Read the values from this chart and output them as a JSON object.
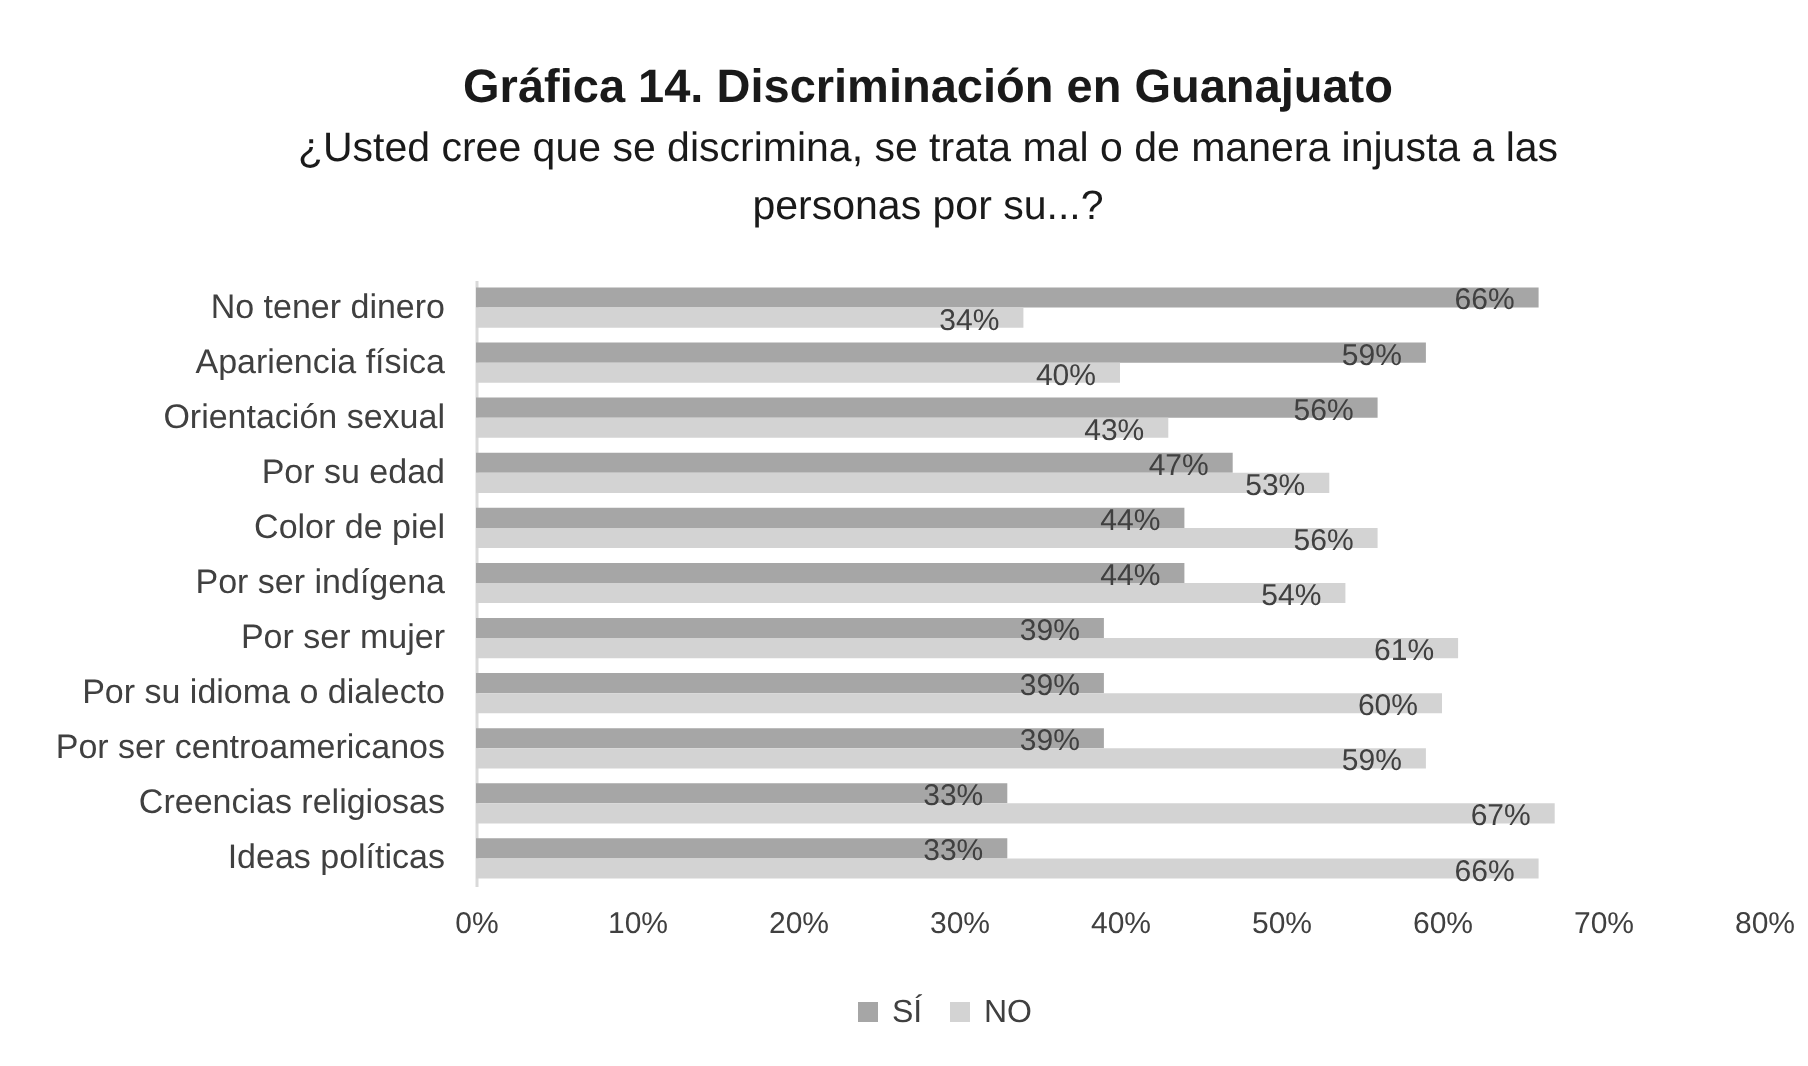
{
  "chart_data": {
    "type": "bar",
    "orientation": "horizontal",
    "title": "Gráfica 14. Discriminación en Guanajuato",
    "subtitle": "¿Usted cree que se discrimina, se trata mal o de manera injusta a las personas por su...?",
    "categories": [
      "No tener dinero",
      "Apariencia física",
      "Orientación sexual",
      "Por su edad",
      "Color de piel",
      "Por ser indígena",
      "Por ser mujer",
      "Por su idioma o dialecto",
      "Por ser centroamericanos",
      "Creencias religiosas",
      "Ideas políticas"
    ],
    "series": [
      {
        "name": "SÍ",
        "color": "#a6a6a6",
        "values": [
          66,
          59,
          56,
          47,
          44,
          44,
          39,
          39,
          39,
          33,
          33
        ],
        "value_labels": [
          "66%",
          "59%",
          "56%",
          "47%",
          "44%",
          "44%",
          "39%",
          "39%",
          "39%",
          "33%",
          "33%"
        ]
      },
      {
        "name": "NO",
        "color": "#d3d3d3",
        "values": [
          34,
          40,
          43,
          53,
          56,
          54,
          61,
          60,
          59,
          67,
          66
        ],
        "value_labels": [
          "34%",
          "40%",
          "43%",
          "53%",
          "56%",
          "54%",
          "61%",
          "60%",
          "59%",
          "67%",
          "66%"
        ]
      }
    ],
    "xlim": [
      0,
      80
    ],
    "xticks": [
      {
        "value": 0,
        "label": "0%"
      },
      {
        "value": 10,
        "label": "10%"
      },
      {
        "value": 20,
        "label": "20%"
      },
      {
        "value": 30,
        "label": "30%"
      },
      {
        "value": 40,
        "label": "40%"
      },
      {
        "value": 50,
        "label": "50%"
      },
      {
        "value": 60,
        "label": "60%"
      },
      {
        "value": 70,
        "label": "70%"
      },
      {
        "value": 80,
        "label": "80%"
      }
    ],
    "grid": false,
    "legend": "bottom"
  }
}
